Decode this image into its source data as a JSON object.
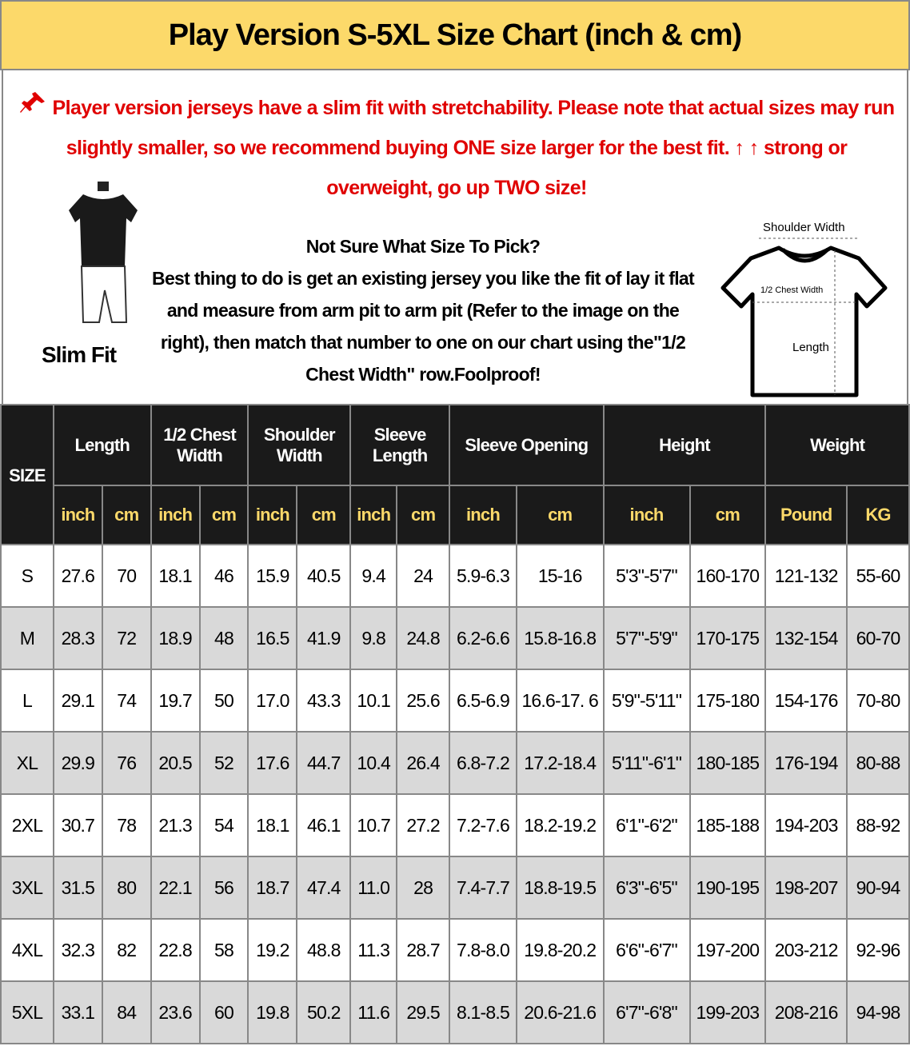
{
  "title": "Play Version S-5XL Size Chart (inch & cm)",
  "notice": {
    "icon": "pushpin-icon",
    "warning": "Player version jerseys have a slim fit with stretchability. Please note that actual sizes may run slightly smaller, so we recommend buying ONE size larger for the best fit. ↑ ↑ strong or overweight, go up TWO size!",
    "fit_label": "Slim Fit",
    "tip_heading": "Not Sure What Size To Pick?",
    "tip_body": "Best thing to do is get an existing jersey you like the fit of lay it flat and measure from arm pit to arm pit (Refer to the image on the right), then match that number to one on our chart using the\"1/2 Chest Width\" row.Foolproof!",
    "diagram": {
      "shoulder": "Shoulder Width",
      "chest": "1/2 Chest Width",
      "length": "Length"
    }
  },
  "colors": {
    "title_bg": "#fcd96a",
    "warning": "#e00000",
    "header_bg": "#1a1a1a",
    "unit_text": "#fcd96a",
    "alt_row": "#d9d9d9"
  },
  "table": {
    "size_header": "SIZE",
    "groups": [
      "Length",
      "1/2 Chest Width",
      "Shoulder Width",
      "Sleeve Length",
      "Sleeve Opening",
      "Height",
      "Weight"
    ],
    "units": [
      "inch",
      "cm",
      "inch",
      "cm",
      "inch",
      "cm",
      "inch",
      "cm",
      "inch",
      "cm",
      "inch",
      "cm",
      "Pound",
      "KG"
    ],
    "rows": [
      [
        "S",
        "27.6",
        "70",
        "18.1",
        "46",
        "15.9",
        "40.5",
        "9.4",
        "24",
        "5.9-6.3",
        "15-16",
        "5'3\"-5'7\"",
        "160-170",
        "121-132",
        "55-60"
      ],
      [
        "M",
        "28.3",
        "72",
        "18.9",
        "48",
        "16.5",
        "41.9",
        "9.8",
        "24.8",
        "6.2-6.6",
        "15.8-16.8",
        "5'7\"-5'9\"",
        "170-175",
        "132-154",
        "60-70"
      ],
      [
        "L",
        "29.1",
        "74",
        "19.7",
        "50",
        "17.0",
        "43.3",
        "10.1",
        "25.6",
        "6.5-6.9",
        "16.6-17. 6",
        "5'9\"-5'11\"",
        "175-180",
        "154-176",
        "70-80"
      ],
      [
        "XL",
        "29.9",
        "76",
        "20.5",
        "52",
        "17.6",
        "44.7",
        "10.4",
        "26.4",
        "6.8-7.2",
        "17.2-18.4",
        "5'11\"-6'1\"",
        "180-185",
        "176-194",
        "80-88"
      ],
      [
        "2XL",
        "30.7",
        "78",
        "21.3",
        "54",
        "18.1",
        "46.1",
        "10.7",
        "27.2",
        "7.2-7.6",
        "18.2-19.2",
        "6'1\"-6'2\"",
        "185-188",
        "194-203",
        "88-92"
      ],
      [
        "3XL",
        "31.5",
        "80",
        "22.1",
        "56",
        "18.7",
        "47.4",
        "11.0",
        "28",
        "7.4-7.7",
        "18.8-19.5",
        "6'3\"-6'5\"",
        "190-195",
        "198-207",
        "90-94"
      ],
      [
        "4XL",
        "32.3",
        "82",
        "22.8",
        "58",
        "19.2",
        "48.8",
        "11.3",
        "28.7",
        "7.8-8.0",
        "19.8-20.2",
        "6'6\"-6'7\"",
        "197-200",
        "203-212",
        "92-96"
      ],
      [
        "5XL",
        "33.1",
        "84",
        "23.6",
        "60",
        "19.8",
        "50.2",
        "11.6",
        "29.5",
        "8.1-8.5",
        "20.6-21.6",
        "6'7\"-6'8\"",
        "199-203",
        "208-216",
        "94-98"
      ]
    ]
  }
}
